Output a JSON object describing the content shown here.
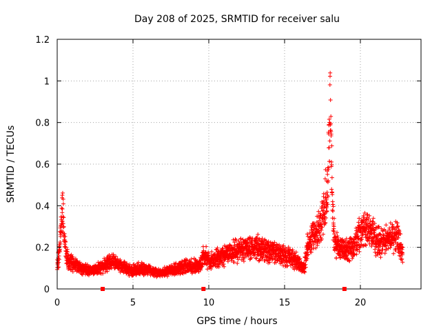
{
  "chart_data": {
    "type": "scatter",
    "title": "Day 208 of 2025, SRMTID for receiver salu",
    "xlabel": "GPS time / hours",
    "ylabel": "SRMTID / TECUs",
    "xlim": [
      0,
      24
    ],
    "ylim": [
      0,
      1.2
    ],
    "xticks": [
      0,
      5,
      10,
      15,
      20
    ],
    "xtick_labels": [
      "0",
      "5",
      "10",
      "15",
      "20"
    ],
    "yticks": [
      0,
      0.2,
      0.4,
      0.6,
      0.8,
      1.0,
      1.2
    ],
    "ytick_labels": [
      "0",
      "0.2",
      "0.4",
      "0.6",
      "0.8",
      "1",
      "1.2"
    ],
    "grid": true,
    "marker": "plus",
    "color": "#ff0000",
    "series": [
      {
        "name": "SRMTID",
        "profile_x": [
          0.0,
          0.1,
          0.2,
          0.3,
          0.4,
          0.5,
          0.6,
          0.8,
          1.0,
          1.5,
          2.0,
          2.5,
          3.0,
          3.5,
          4.0,
          4.5,
          5.0,
          5.5,
          6.0,
          6.5,
          7.0,
          7.5,
          8.0,
          8.5,
          9.0,
          9.5,
          9.7,
          10.0,
          10.5,
          11.0,
          11.5,
          12.0,
          12.5,
          13.0,
          13.5,
          14.0,
          14.5,
          15.0,
          15.5,
          16.0,
          16.3,
          16.5,
          16.8,
          17.0,
          17.3,
          17.6,
          17.8,
          17.9,
          18.0,
          18.1,
          18.2,
          18.3,
          18.5,
          19.0,
          19.5,
          20.0,
          20.5,
          21.0,
          21.5,
          22.0,
          22.5,
          22.8
        ],
        "profile_y": [
          0.12,
          0.15,
          0.25,
          0.38,
          0.33,
          0.22,
          0.16,
          0.13,
          0.12,
          0.1,
          0.09,
          0.09,
          0.11,
          0.13,
          0.12,
          0.1,
          0.09,
          0.1,
          0.09,
          0.08,
          0.08,
          0.09,
          0.1,
          0.11,
          0.11,
          0.12,
          0.17,
          0.13,
          0.15,
          0.16,
          0.18,
          0.19,
          0.2,
          0.2,
          0.19,
          0.18,
          0.17,
          0.16,
          0.15,
          0.12,
          0.1,
          0.2,
          0.24,
          0.26,
          0.3,
          0.38,
          0.48,
          0.62,
          0.9,
          0.6,
          0.35,
          0.22,
          0.2,
          0.18,
          0.2,
          0.27,
          0.3,
          0.24,
          0.22,
          0.25,
          0.24,
          0.16
        ],
        "spread": 0.35,
        "samples_per_hour": 130,
        "x_range": [
          0.0,
          22.8
        ]
      }
    ],
    "data_gaps": [
      3.0,
      9.65,
      18.95
    ]
  }
}
